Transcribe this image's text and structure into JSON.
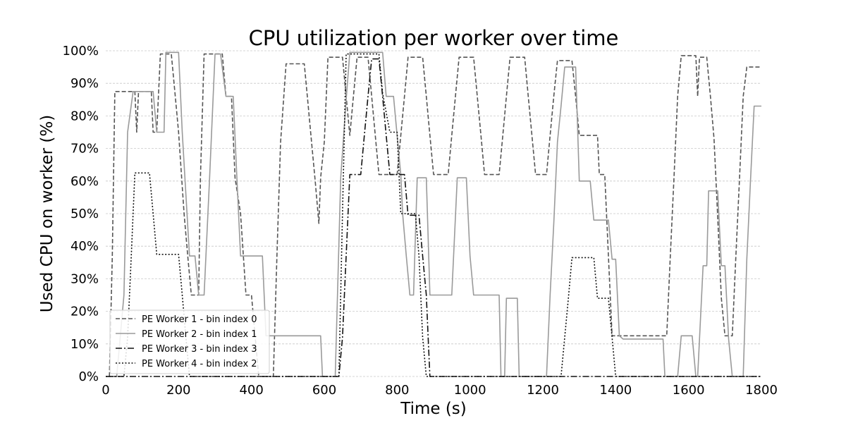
{
  "chart_data": {
    "type": "line",
    "title": "CPU utilization per worker over time",
    "xlabel": "Time (s)",
    "ylabel": "Used CPU on worker (%)",
    "xlim": [
      0,
      1800
    ],
    "ylim": [
      0,
      100
    ],
    "x_ticks": [
      0,
      200,
      400,
      600,
      800,
      1000,
      1200,
      1400,
      1600,
      1800
    ],
    "x_tick_labels": [
      "0",
      "200",
      "400",
      "600",
      "800",
      "1000",
      "1200",
      "1400",
      "1600",
      "1800"
    ],
    "y_ticks": [
      0,
      10,
      20,
      30,
      40,
      50,
      60,
      70,
      80,
      90,
      100
    ],
    "y_tick_labels": [
      "0%",
      "10%",
      "20%",
      "30%",
      "40%",
      "50%",
      "60%",
      "70%",
      "80%",
      "90%",
      "100%"
    ],
    "grid": "horizontal",
    "legend_position": "lower-left",
    "series": [
      {
        "name": "PE Worker 1 - bin index 0",
        "color": "#555555",
        "style": "dashed",
        "points": [
          [
            10,
            0
          ],
          [
            18,
            37
          ],
          [
            25,
            87.5
          ],
          [
            80,
            87.5
          ],
          [
            85,
            75
          ],
          [
            90,
            87.5
          ],
          [
            125,
            87.5
          ],
          [
            130,
            75
          ],
          [
            140,
            75
          ],
          [
            150,
            99
          ],
          [
            180,
            99
          ],
          [
            190,
            87
          ],
          [
            200,
            75
          ],
          [
            215,
            50
          ],
          [
            225,
            37
          ],
          [
            235,
            25
          ],
          [
            255,
            25
          ],
          [
            260,
            61
          ],
          [
            270,
            99
          ],
          [
            320,
            99
          ],
          [
            330,
            86
          ],
          [
            345,
            86
          ],
          [
            355,
            61
          ],
          [
            370,
            50
          ],
          [
            385,
            25
          ],
          [
            400,
            25
          ],
          [
            420,
            0
          ],
          [
            460,
            0
          ],
          [
            470,
            37
          ],
          [
            480,
            72
          ],
          [
            495,
            96
          ],
          [
            545,
            96
          ],
          [
            555,
            84
          ],
          [
            565,
            72
          ],
          [
            575,
            60
          ],
          [
            585,
            47
          ],
          [
            590,
            61
          ],
          [
            600,
            72
          ],
          [
            610,
            98
          ],
          [
            650,
            98
          ],
          [
            660,
            86
          ],
          [
            670,
            74
          ],
          [
            680,
            86
          ],
          [
            690,
            98
          ],
          [
            720,
            98
          ],
          [
            730,
            86
          ],
          [
            740,
            74
          ],
          [
            750,
            62
          ],
          [
            800,
            62
          ],
          [
            810,
            74
          ],
          [
            820,
            86
          ],
          [
            830,
            98
          ],
          [
            870,
            98
          ],
          [
            880,
            86
          ],
          [
            890,
            74
          ],
          [
            900,
            62
          ],
          [
            940,
            62
          ],
          [
            950,
            74
          ],
          [
            960,
            86
          ],
          [
            970,
            98
          ],
          [
            1010,
            98
          ],
          [
            1020,
            86
          ],
          [
            1030,
            74
          ],
          [
            1040,
            62
          ],
          [
            1080,
            62
          ],
          [
            1090,
            74
          ],
          [
            1100,
            86
          ],
          [
            1110,
            98
          ],
          [
            1150,
            98
          ],
          [
            1160,
            86
          ],
          [
            1170,
            74
          ],
          [
            1180,
            62
          ],
          [
            1210,
            62
          ],
          [
            1220,
            74
          ],
          [
            1230,
            86
          ],
          [
            1240,
            97
          ],
          [
            1280,
            97
          ],
          [
            1290,
            86
          ],
          [
            1300,
            74
          ],
          [
            1350,
            74
          ],
          [
            1355,
            62
          ],
          [
            1370,
            62
          ],
          [
            1380,
            37
          ],
          [
            1390,
            12.5
          ],
          [
            1540,
            12.5
          ],
          [
            1550,
            37
          ],
          [
            1560,
            61
          ],
          [
            1570,
            86
          ],
          [
            1580,
            98.5
          ],
          [
            1620,
            98.5
          ],
          [
            1625,
            86
          ],
          [
            1630,
            98
          ],
          [
            1650,
            98
          ],
          [
            1660,
            86
          ],
          [
            1670,
            73
          ],
          [
            1680,
            49
          ],
          [
            1690,
            24
          ],
          [
            1700,
            12.5
          ],
          [
            1720,
            12.5
          ],
          [
            1730,
            37
          ],
          [
            1740,
            61
          ],
          [
            1750,
            86
          ],
          [
            1760,
            95
          ],
          [
            1800,
            95
          ]
        ]
      },
      {
        "name": "PE Worker 2 - bin index 1",
        "color": "#9a9a9a",
        "style": "solid",
        "points": [
          [
            0,
            0
          ],
          [
            30,
            0
          ],
          [
            40,
            12.5
          ],
          [
            50,
            25
          ],
          [
            60,
            75
          ],
          [
            75,
            87.5
          ],
          [
            130,
            87.5
          ],
          [
            140,
            75
          ],
          [
            160,
            75
          ],
          [
            165,
            99.5
          ],
          [
            200,
            99.5
          ],
          [
            210,
            75
          ],
          [
            230,
            37
          ],
          [
            245,
            37
          ],
          [
            255,
            25
          ],
          [
            270,
            25
          ],
          [
            285,
            61
          ],
          [
            300,
            99
          ],
          [
            315,
            99
          ],
          [
            330,
            86
          ],
          [
            350,
            86
          ],
          [
            360,
            61
          ],
          [
            370,
            37
          ],
          [
            430,
            37
          ],
          [
            440,
            12.5
          ],
          [
            590,
            12.5
          ],
          [
            595,
            0
          ],
          [
            630,
            0
          ],
          [
            645,
            61
          ],
          [
            660,
            85
          ],
          [
            670,
            99.5
          ],
          [
            760,
            99.5
          ],
          [
            770,
            86
          ],
          [
            790,
            86
          ],
          [
            800,
            74
          ],
          [
            810,
            62
          ],
          [
            815,
            50
          ],
          [
            825,
            37
          ],
          [
            835,
            25
          ],
          [
            845,
            25
          ],
          [
            855,
            61
          ],
          [
            880,
            61
          ],
          [
            890,
            25
          ],
          [
            950,
            25
          ],
          [
            955,
            37
          ],
          [
            965,
            61
          ],
          [
            990,
            61
          ],
          [
            1000,
            37
          ],
          [
            1010,
            25
          ],
          [
            1080,
            25
          ],
          [
            1085,
            0
          ],
          [
            1095,
            0
          ],
          [
            1100,
            24
          ],
          [
            1130,
            24
          ],
          [
            1135,
            0
          ],
          [
            1200,
            0
          ],
          [
            1210,
            0
          ],
          [
            1220,
            25
          ],
          [
            1230,
            47
          ],
          [
            1240,
            72
          ],
          [
            1250,
            83
          ],
          [
            1260,
            95
          ],
          [
            1290,
            95
          ],
          [
            1300,
            60
          ],
          [
            1330,
            60
          ],
          [
            1340,
            48
          ],
          [
            1380,
            48
          ],
          [
            1390,
            36
          ],
          [
            1400,
            36
          ],
          [
            1410,
            12.5
          ],
          [
            1420,
            11.5
          ],
          [
            1530,
            11.5
          ],
          [
            1535,
            0
          ],
          [
            1570,
            0
          ],
          [
            1580,
            12.5
          ],
          [
            1610,
            12.5
          ],
          [
            1620,
            0
          ],
          [
            1625,
            0
          ],
          [
            1630,
            11.5
          ],
          [
            1640,
            34
          ],
          [
            1650,
            34
          ],
          [
            1655,
            57
          ],
          [
            1680,
            57
          ],
          [
            1690,
            34
          ],
          [
            1700,
            34
          ],
          [
            1710,
            11.5
          ],
          [
            1720,
            0
          ],
          [
            1750,
            0
          ],
          [
            1760,
            36
          ],
          [
            1770,
            60
          ],
          [
            1780,
            83
          ],
          [
            1800,
            83
          ]
        ]
      },
      {
        "name": "PE Worker 3 - bin index 3",
        "color": "#111111",
        "style": "dashdot",
        "points": [
          [
            0,
            0
          ],
          [
            640,
            0
          ],
          [
            650,
            12
          ],
          [
            660,
            37
          ],
          [
            670,
            62
          ],
          [
            700,
            62
          ],
          [
            710,
            74
          ],
          [
            720,
            86
          ],
          [
            730,
            97.5
          ],
          [
            750,
            97.5
          ],
          [
            760,
            86
          ],
          [
            770,
            74
          ],
          [
            780,
            62
          ],
          [
            820,
            62
          ],
          [
            830,
            49.5
          ],
          [
            860,
            49.5
          ],
          [
            870,
            37
          ],
          [
            880,
            25
          ],
          [
            885,
            12
          ],
          [
            890,
            0
          ],
          [
            1800,
            0
          ]
        ]
      },
      {
        "name": "PE Worker 4 - bin index 2",
        "color": "#111111",
        "style": "dotted",
        "points": [
          [
            0,
            0
          ],
          [
            50,
            0
          ],
          [
            60,
            12
          ],
          [
            70,
            37
          ],
          [
            80,
            62.5
          ],
          [
            120,
            62.5
          ],
          [
            130,
            50
          ],
          [
            140,
            37.5
          ],
          [
            200,
            37.5
          ],
          [
            210,
            25
          ],
          [
            220,
            12
          ],
          [
            230,
            0
          ],
          [
            640,
            0
          ],
          [
            650,
            50
          ],
          [
            660,
            99
          ],
          [
            750,
            99
          ],
          [
            760,
            87
          ],
          [
            780,
            75
          ],
          [
            800,
            75
          ],
          [
            810,
            50
          ],
          [
            850,
            50
          ],
          [
            860,
            37
          ],
          [
            870,
            12
          ],
          [
            880,
            0
          ],
          [
            1250,
            0
          ],
          [
            1260,
            12
          ],
          [
            1270,
            24
          ],
          [
            1280,
            36.5
          ],
          [
            1340,
            36.5
          ],
          [
            1350,
            24
          ],
          [
            1380,
            24
          ],
          [
            1390,
            12
          ],
          [
            1400,
            0
          ],
          [
            1800,
            0
          ]
        ]
      }
    ]
  }
}
